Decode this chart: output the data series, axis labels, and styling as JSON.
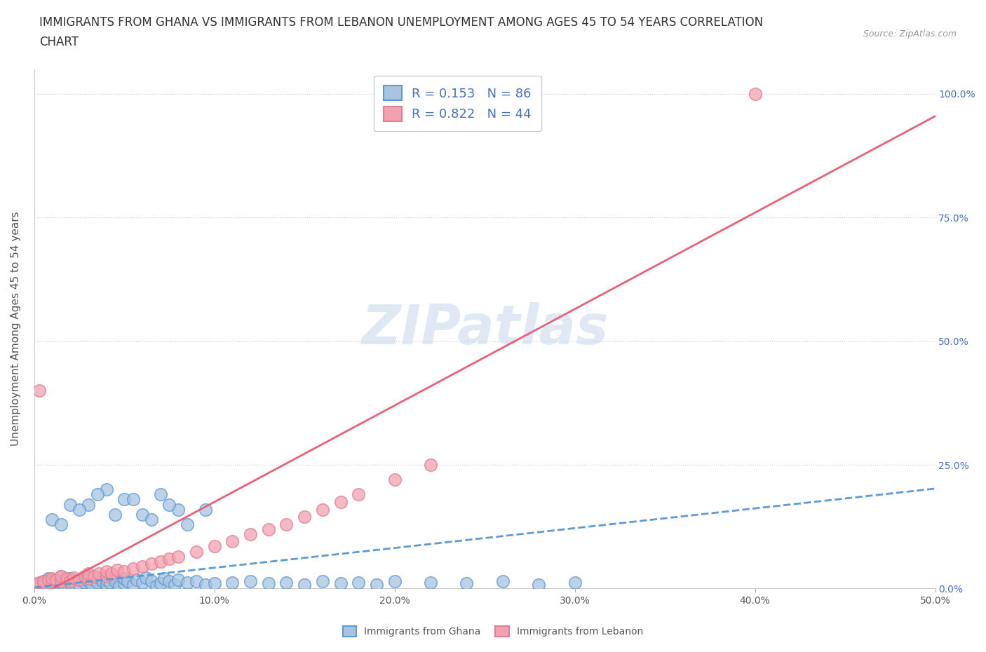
{
  "title_line1": "IMMIGRANTS FROM GHANA VS IMMIGRANTS FROM LEBANON UNEMPLOYMENT AMONG AGES 45 TO 54 YEARS CORRELATION",
  "title_line2": "CHART",
  "source": "Source: ZipAtlas.com",
  "xlabel_bottom": "Immigrants from Ghana",
  "xlabel_right_label": "Immigrants from Lebanon",
  "ylabel": "Unemployment Among Ages 45 to 54 years",
  "xlim": [
    0.0,
    0.5
  ],
  "ylim": [
    0.0,
    1.05
  ],
  "xticks": [
    0.0,
    0.1,
    0.2,
    0.3,
    0.4,
    0.5
  ],
  "xtick_labels": [
    "0.0%",
    "10.0%",
    "20.0%",
    "30.0%",
    "40.0%",
    "50.0%"
  ],
  "ytick_labels_right": [
    "0.0%",
    "25.0%",
    "50.0%",
    "75.0%",
    "100.0%"
  ],
  "yticks_right": [
    0.0,
    0.25,
    0.5,
    0.75,
    1.0
  ],
  "ghana_color": "#a8c4e0",
  "lebanon_color": "#f4a0b0",
  "ghana_R": 0.153,
  "ghana_N": 86,
  "lebanon_R": 0.822,
  "lebanon_N": 44,
  "watermark": "ZIPatlas",
  "ghana_line_color": "#5b9bd5",
  "lebanon_line_color": "#e8607a",
  "ghana_scatter_x": [
    0.0,
    0.002,
    0.003,
    0.005,
    0.005,
    0.007,
    0.008,
    0.01,
    0.01,
    0.012,
    0.013,
    0.015,
    0.015,
    0.016,
    0.018,
    0.02,
    0.02,
    0.022,
    0.023,
    0.025,
    0.025,
    0.027,
    0.028,
    0.03,
    0.03,
    0.032,
    0.033,
    0.035,
    0.036,
    0.038,
    0.04,
    0.04,
    0.042,
    0.044,
    0.045,
    0.047,
    0.05,
    0.05,
    0.052,
    0.055,
    0.057,
    0.06,
    0.062,
    0.065,
    0.068,
    0.07,
    0.072,
    0.075,
    0.078,
    0.08,
    0.085,
    0.09,
    0.095,
    0.1,
    0.11,
    0.12,
    0.13,
    0.14,
    0.15,
    0.16,
    0.17,
    0.18,
    0.19,
    0.2,
    0.22,
    0.24,
    0.26,
    0.28,
    0.3,
    0.03,
    0.04,
    0.05,
    0.06,
    0.07,
    0.08,
    0.01,
    0.02,
    0.015,
    0.025,
    0.035,
    0.045,
    0.055,
    0.065,
    0.075,
    0.085,
    0.095
  ],
  "ghana_scatter_y": [
    0.005,
    0.01,
    0.008,
    0.015,
    0.005,
    0.01,
    0.02,
    0.008,
    0.018,
    0.012,
    0.005,
    0.015,
    0.025,
    0.008,
    0.018,
    0.01,
    0.02,
    0.015,
    0.005,
    0.018,
    0.008,
    0.022,
    0.012,
    0.015,
    0.025,
    0.008,
    0.018,
    0.012,
    0.022,
    0.015,
    0.008,
    0.018,
    0.012,
    0.022,
    0.015,
    0.005,
    0.01,
    0.02,
    0.015,
    0.008,
    0.018,
    0.012,
    0.022,
    0.015,
    0.005,
    0.01,
    0.02,
    0.015,
    0.008,
    0.018,
    0.012,
    0.015,
    0.008,
    0.01,
    0.012,
    0.015,
    0.01,
    0.012,
    0.008,
    0.015,
    0.01,
    0.012,
    0.008,
    0.015,
    0.012,
    0.01,
    0.015,
    0.008,
    0.012,
    0.17,
    0.2,
    0.18,
    0.15,
    0.19,
    0.16,
    0.14,
    0.17,
    0.13,
    0.16,
    0.19,
    0.15,
    0.18,
    0.14,
    0.17,
    0.13,
    0.16
  ],
  "lebanon_scatter_x": [
    0.002,
    0.003,
    0.005,
    0.005,
    0.008,
    0.01,
    0.01,
    0.012,
    0.015,
    0.015,
    0.018,
    0.02,
    0.022,
    0.025,
    0.028,
    0.03,
    0.03,
    0.033,
    0.036,
    0.04,
    0.04,
    0.043,
    0.046,
    0.05,
    0.055,
    0.06,
    0.065,
    0.07,
    0.075,
    0.08,
    0.09,
    0.1,
    0.11,
    0.12,
    0.13,
    0.14,
    0.15,
    0.16,
    0.17,
    0.18,
    0.2,
    0.22,
    0.4,
    0.003
  ],
  "lebanon_scatter_y": [
    0.008,
    0.012,
    0.01,
    0.015,
    0.018,
    0.012,
    0.02,
    0.018,
    0.015,
    0.025,
    0.02,
    0.015,
    0.022,
    0.018,
    0.025,
    0.02,
    0.03,
    0.025,
    0.03,
    0.025,
    0.035,
    0.03,
    0.038,
    0.035,
    0.04,
    0.045,
    0.05,
    0.055,
    0.06,
    0.065,
    0.075,
    0.085,
    0.095,
    0.11,
    0.12,
    0.13,
    0.145,
    0.16,
    0.175,
    0.19,
    0.22,
    0.25,
    1.0,
    0.4
  ],
  "ghana_line_slope": 0.4,
  "ghana_line_intercept": 0.002,
  "lebanon_line_slope": 1.95,
  "lebanon_line_intercept": -0.02,
  "title_fontsize": 12,
  "axis_label_fontsize": 11,
  "tick_fontsize": 10,
  "right_tick_color": "#4472c4",
  "bottom_tick_color": "#555555"
}
